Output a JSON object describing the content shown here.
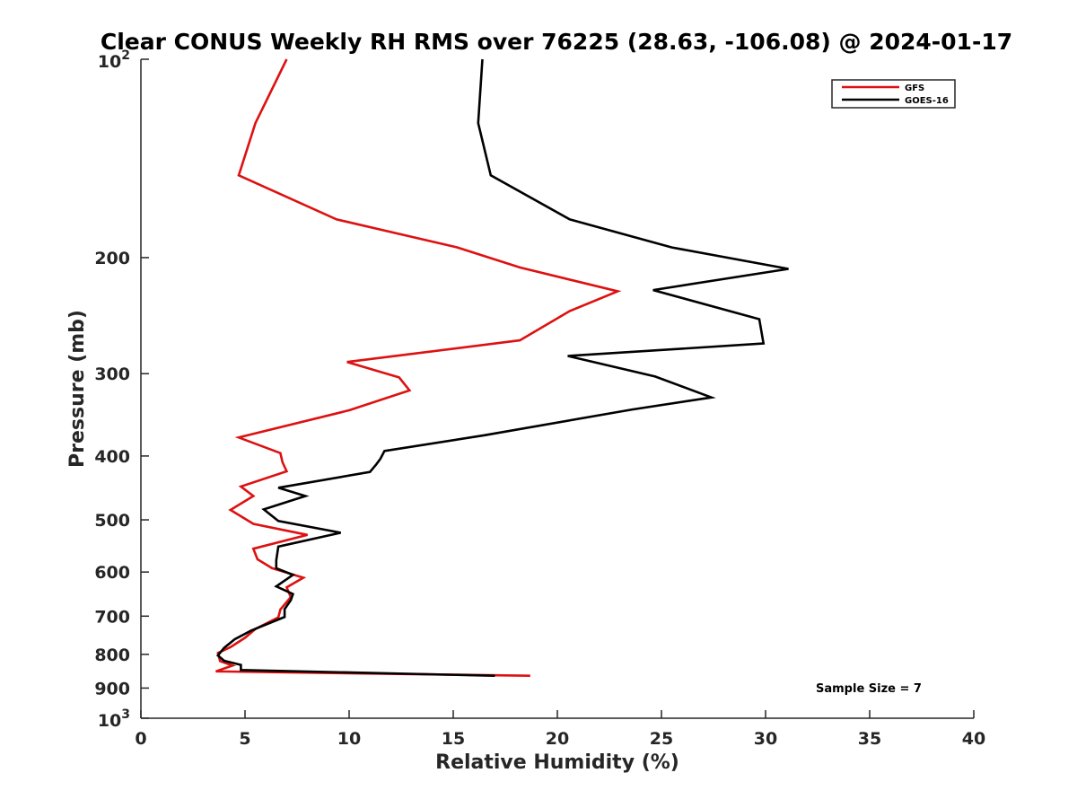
{
  "chart_data": {
    "type": "line",
    "title": "Clear CONUS Weekly RH RMS over 76225 (28.63, -106.08) @ 2024-01-17",
    "xlabel": "Relative Humidity (%)",
    "ylabel": "Pressure (mb)",
    "xlim": [
      0,
      40
    ],
    "ylim": [
      100,
      1000
    ],
    "y_scale": "log",
    "y_reversed": true,
    "x_ticks": [
      "0",
      "5",
      "10",
      "15",
      "20",
      "25",
      "30",
      "35",
      "40"
    ],
    "x_tick_values": [
      0,
      5,
      10,
      15,
      20,
      25,
      30,
      35,
      40
    ],
    "y_ticks": [
      {
        "value": 100,
        "base": "10",
        "exp": "2"
      },
      {
        "value": 200,
        "label": "200"
      },
      {
        "value": 300,
        "label": "300"
      },
      {
        "value": 400,
        "label": "400"
      },
      {
        "value": 500,
        "label": "500"
      },
      {
        "value": 600,
        "label": "600"
      },
      {
        "value": 700,
        "label": "700"
      },
      {
        "value": 800,
        "label": "800"
      },
      {
        "value": 900,
        "label": "900"
      },
      {
        "value": 1000,
        "base": "10",
        "exp": "3"
      }
    ],
    "grid": false,
    "legend_position": "top-right",
    "series": [
      {
        "name": "GFS",
        "color": "#dd1111",
        "points": [
          {
            "x": 7.0,
            "y": 100
          },
          {
            "x": 5.5,
            "y": 125
          },
          {
            "x": 4.7,
            "y": 150
          },
          {
            "x": 9.4,
            "y": 175
          },
          {
            "x": 15.2,
            "y": 193
          },
          {
            "x": 18.2,
            "y": 207
          },
          {
            "x": 22.9,
            "y": 225
          },
          {
            "x": 20.6,
            "y": 241
          },
          {
            "x": 18.2,
            "y": 267
          },
          {
            "x": 9.9,
            "y": 288
          },
          {
            "x": 12.4,
            "y": 304
          },
          {
            "x": 12.9,
            "y": 318
          },
          {
            "x": 10.0,
            "y": 341
          },
          {
            "x": 4.7,
            "y": 375
          },
          {
            "x": 6.7,
            "y": 396
          },
          {
            "x": 6.8,
            "y": 409
          },
          {
            "x": 7.0,
            "y": 422
          },
          {
            "x": 4.8,
            "y": 445
          },
          {
            "x": 5.4,
            "y": 460
          },
          {
            "x": 4.3,
            "y": 483
          },
          {
            "x": 5.4,
            "y": 507
          },
          {
            "x": 8.0,
            "y": 527
          },
          {
            "x": 5.4,
            "y": 553
          },
          {
            "x": 5.6,
            "y": 574
          },
          {
            "x": 6.3,
            "y": 592
          },
          {
            "x": 7.8,
            "y": 612
          },
          {
            "x": 7.0,
            "y": 633
          },
          {
            "x": 7.2,
            "y": 655
          },
          {
            "x": 6.7,
            "y": 684
          },
          {
            "x": 6.6,
            "y": 703
          },
          {
            "x": 5.5,
            "y": 732
          },
          {
            "x": 5.0,
            "y": 755
          },
          {
            "x": 4.3,
            "y": 780
          },
          {
            "x": 3.7,
            "y": 796
          },
          {
            "x": 3.8,
            "y": 819
          },
          {
            "x": 4.4,
            "y": 832
          },
          {
            "x": 3.6,
            "y": 849
          },
          {
            "x": 18.7,
            "y": 862
          }
        ]
      },
      {
        "name": "GOES-16",
        "color": "#000000",
        "points": [
          {
            "x": 16.4,
            "y": 100
          },
          {
            "x": 16.2,
            "y": 125
          },
          {
            "x": 16.8,
            "y": 150
          },
          {
            "x": 20.6,
            "y": 175
          },
          {
            "x": 25.5,
            "y": 193
          },
          {
            "x": 31.1,
            "y": 208
          },
          {
            "x": 24.6,
            "y": 224
          },
          {
            "x": 29.7,
            "y": 248
          },
          {
            "x": 29.9,
            "y": 270
          },
          {
            "x": 20.5,
            "y": 282
          },
          {
            "x": 24.7,
            "y": 303
          },
          {
            "x": 27.4,
            "y": 326
          },
          {
            "x": 23.6,
            "y": 340
          },
          {
            "x": 16.5,
            "y": 372
          },
          {
            "x": 11.7,
            "y": 393
          },
          {
            "x": 11.5,
            "y": 404
          },
          {
            "x": 11.3,
            "y": 412
          },
          {
            "x": 11.0,
            "y": 423
          },
          {
            "x": 6.6,
            "y": 447
          },
          {
            "x": 7.9,
            "y": 460
          },
          {
            "x": 5.9,
            "y": 482
          },
          {
            "x": 6.6,
            "y": 502
          },
          {
            "x": 9.6,
            "y": 523
          },
          {
            "x": 6.6,
            "y": 549
          },
          {
            "x": 6.5,
            "y": 576
          },
          {
            "x": 6.5,
            "y": 592
          },
          {
            "x": 7.3,
            "y": 606
          },
          {
            "x": 6.5,
            "y": 631
          },
          {
            "x": 7.3,
            "y": 648
          },
          {
            "x": 7.2,
            "y": 662
          },
          {
            "x": 6.9,
            "y": 683
          },
          {
            "x": 6.9,
            "y": 702
          },
          {
            "x": 5.3,
            "y": 736
          },
          {
            "x": 4.5,
            "y": 759
          },
          {
            "x": 4.0,
            "y": 782
          },
          {
            "x": 3.7,
            "y": 803
          },
          {
            "x": 4.0,
            "y": 818
          },
          {
            "x": 4.8,
            "y": 830
          },
          {
            "x": 4.8,
            "y": 845
          },
          {
            "x": 17.0,
            "y": 862
          }
        ]
      }
    ],
    "annotations": [
      "Sample Size = 7"
    ]
  }
}
